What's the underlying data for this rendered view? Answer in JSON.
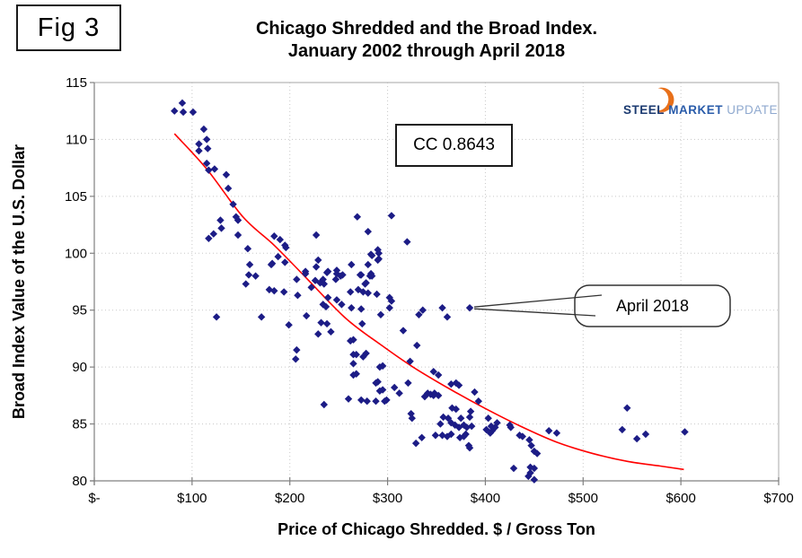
{
  "figure_label": "Fig 3",
  "title": {
    "line1": "Chicago Shredded and the Broad Index.",
    "line2": "January 2002 through April 2018"
  },
  "annotations": {
    "correlation": "CC 0.8643",
    "callout_label": "April 2018"
  },
  "logo": {
    "steel": "STEEL",
    "market": "MARKET",
    "update": "UPDATE"
  },
  "axes": {
    "x_title": "Price of Chicago Shredded. $ / Gross Ton",
    "y_title": "Broad Index Value of the U.S. Dollar"
  },
  "colors": {
    "marker": "#1c1c86",
    "trend": "#ff0000",
    "grid": "#c8c8c8",
    "axis": "#808080",
    "plot_border": "#b7b7b7",
    "callout_stroke": "#333333",
    "logo_orange": "#e8701a",
    "logo_navy": "#1b3a70",
    "logo_blue": "#2a5caa",
    "logo_light": "#8fa9cf"
  },
  "chart_data": {
    "type": "scatter",
    "title": "Chicago Shredded and the Broad Index. January 2002 through April 2018",
    "xlabel": "Price of Chicago Shredded. $ / Gross Ton",
    "ylabel": "Broad Index Value of the U.S. Dollar",
    "xlim": [
      0,
      700
    ],
    "ylim": [
      80,
      115
    ],
    "grid": "dotted",
    "legend_position": "none",
    "correlation_coefficient": 0.8643,
    "x_ticks": [
      {
        "v": 0,
        "label": "$-"
      },
      {
        "v": 100,
        "label": "$100"
      },
      {
        "v": 200,
        "label": "$200"
      },
      {
        "v": 300,
        "label": "$300"
      },
      {
        "v": 400,
        "label": "$400"
      },
      {
        "v": 500,
        "label": "$500"
      },
      {
        "v": 600,
        "label": "$600"
      },
      {
        "v": 700,
        "label": "$700"
      }
    ],
    "y_ticks": [
      {
        "v": 115,
        "label": "115"
      },
      {
        "v": 110,
        "label": "110"
      },
      {
        "v": 105,
        "label": "105"
      },
      {
        "v": 100,
        "label": "100"
      },
      {
        "v": 95,
        "label": "95"
      },
      {
        "v": 90,
        "label": "90"
      },
      {
        "v": 85,
        "label": "85"
      },
      {
        "v": 80,
        "label": "80"
      }
    ],
    "callout": {
      "label": "April 2018",
      "point": [
        384,
        95.2
      ]
    },
    "series": [
      {
        "name": "Monthly observations Jan 2002 - Apr 2018",
        "type": "scatter",
        "marker": "diamond",
        "color": "#1c1c86",
        "points": [
          [
            82,
            112.5
          ],
          [
            90,
            113.2
          ],
          [
            91,
            112.4
          ],
          [
            101,
            112.4
          ],
          [
            112,
            110.9
          ],
          [
            115,
            110.0
          ],
          [
            107,
            109.6
          ],
          [
            116,
            109.2
          ],
          [
            107,
            109.0
          ],
          [
            115,
            107.9
          ],
          [
            117,
            107.3
          ],
          [
            123,
            107.4
          ],
          [
            135,
            106.9
          ],
          [
            137,
            105.7
          ],
          [
            142,
            104.3
          ],
          [
            145,
            103.2
          ],
          [
            147,
            102.9
          ],
          [
            129,
            102.9
          ],
          [
            130,
            102.2
          ],
          [
            122,
            101.7
          ],
          [
            117,
            101.3
          ],
          [
            147,
            101.6
          ],
          [
            125,
            94.4
          ],
          [
            269,
            103.2
          ],
          [
            304,
            103.3
          ],
          [
            227,
            101.6
          ],
          [
            280,
            101.9
          ],
          [
            184,
            101.5
          ],
          [
            190,
            101.2
          ],
          [
            195,
            100.7
          ],
          [
            320,
            101.0
          ],
          [
            196,
            100.5
          ],
          [
            157,
            100.4
          ],
          [
            290,
            100.3
          ],
          [
            291,
            100.0
          ],
          [
            283,
            99.9
          ],
          [
            284,
            99.8
          ],
          [
            188,
            99.7
          ],
          [
            291,
            99.5
          ],
          [
            290,
            99.4
          ],
          [
            229,
            99.4
          ],
          [
            182,
            99.1
          ],
          [
            195,
            99.2
          ],
          [
            263,
            99.0
          ],
          [
            280,
            99.0
          ],
          [
            159,
            99.0
          ],
          [
            181,
            99.0
          ],
          [
            227,
            98.8
          ],
          [
            216,
            98.4
          ],
          [
            239,
            98.4
          ],
          [
            248,
            98.5
          ],
          [
            272,
            98.1
          ],
          [
            282,
            98.0
          ],
          [
            226,
            97.6
          ],
          [
            234,
            97.7
          ],
          [
            247,
            97.7
          ],
          [
            254,
            98.1
          ],
          [
            207,
            97.7
          ],
          [
            277,
            97.3
          ],
          [
            158,
            98.1
          ],
          [
            165,
            98.0
          ],
          [
            155,
            97.3
          ],
          [
            216,
            98.2
          ],
          [
            238,
            98.3
          ],
          [
            248,
            98.2
          ],
          [
            252,
            98.0
          ],
          [
            273,
            98.1
          ],
          [
            283,
            98.2
          ],
          [
            284,
            98.0
          ],
          [
            278,
            97.4
          ],
          [
            222,
            97.0
          ],
          [
            231,
            97.4
          ],
          [
            235,
            97.3
          ],
          [
            179,
            96.8
          ],
          [
            184,
            96.7
          ],
          [
            194,
            96.6
          ],
          [
            208,
            96.3
          ],
          [
            239,
            96.1
          ],
          [
            248,
            95.9
          ],
          [
            234,
            95.5
          ],
          [
            237,
            95.3
          ],
          [
            253,
            95.5
          ],
          [
            270,
            96.8
          ],
          [
            275,
            96.6
          ],
          [
            280,
            96.5
          ],
          [
            262,
            96.6
          ],
          [
            289,
            96.4
          ],
          [
            302,
            96.1
          ],
          [
            304,
            95.8
          ],
          [
            217,
            94.5
          ],
          [
            171,
            94.4
          ],
          [
            199,
            93.7
          ],
          [
            263,
            95.2
          ],
          [
            273,
            95.1
          ],
          [
            302,
            95.2
          ],
          [
            293,
            94.6
          ],
          [
            332,
            94.6
          ],
          [
            336,
            95.0
          ],
          [
            356,
            95.2
          ],
          [
            384,
            95.2
          ],
          [
            361,
            94.4
          ],
          [
            232,
            93.9
          ],
          [
            238,
            93.8
          ],
          [
            229,
            92.9
          ],
          [
            242,
            93.1
          ],
          [
            274,
            93.8
          ],
          [
            316,
            93.2
          ],
          [
            262,
            92.3
          ],
          [
            265,
            92.4
          ],
          [
            207,
            91.5
          ],
          [
            206,
            90.7
          ],
          [
            268,
            91.1
          ],
          [
            278,
            91.2
          ],
          [
            265,
            90.3
          ],
          [
            295,
            90.1
          ],
          [
            330,
            91.9
          ],
          [
            265,
            91.1
          ],
          [
            275,
            90.9
          ],
          [
            292,
            90.0
          ],
          [
            323,
            90.5
          ],
          [
            268,
            89.4
          ],
          [
            290,
            88.7
          ],
          [
            295,
            88.0
          ],
          [
            265,
            89.3
          ],
          [
            288,
            88.6
          ],
          [
            292,
            87.9
          ],
          [
            307,
            88.2
          ],
          [
            312,
            87.7
          ],
          [
            321,
            88.6
          ],
          [
            347,
            89.6
          ],
          [
            352,
            89.3
          ],
          [
            365,
            88.5
          ],
          [
            370,
            88.6
          ],
          [
            373,
            88.4
          ],
          [
            389,
            87.8
          ],
          [
            260,
            87.2
          ],
          [
            279,
            87.0
          ],
          [
            299,
            87.1
          ],
          [
            235,
            86.7
          ],
          [
            341,
            87.7
          ],
          [
            347,
            87.5
          ],
          [
            352,
            87.5
          ],
          [
            393,
            87.0
          ],
          [
            273,
            87.1
          ],
          [
            288,
            87.0
          ],
          [
            297,
            87.0
          ],
          [
            366,
            86.4
          ],
          [
            370,
            86.3
          ],
          [
            385,
            86.1
          ],
          [
            338,
            87.4
          ],
          [
            344,
            87.6
          ],
          [
            348,
            87.7
          ],
          [
            545,
            86.4
          ],
          [
            324,
            85.9
          ],
          [
            325,
            85.5
          ],
          [
            384,
            85.6
          ],
          [
            386,
            84.8
          ],
          [
            357,
            85.6
          ],
          [
            362,
            85.5
          ],
          [
            375,
            85.5
          ],
          [
            378,
            84.9
          ],
          [
            381,
            84.7
          ],
          [
            354,
            85.0
          ],
          [
            365,
            85.1
          ],
          [
            369,
            84.9
          ],
          [
            373,
            84.7
          ],
          [
            365,
            84.1
          ],
          [
            356,
            84.0
          ],
          [
            349,
            84.0
          ],
          [
            361,
            83.9
          ],
          [
            374,
            83.8
          ],
          [
            378,
            83.9
          ],
          [
            380,
            84.1
          ],
          [
            403,
            85.5
          ],
          [
            406,
            84.8
          ],
          [
            410,
            84.7
          ],
          [
            407,
            84.4
          ],
          [
            412,
            85.1
          ],
          [
            401,
            84.5
          ],
          [
            405,
            84.2
          ],
          [
            425,
            84.9
          ],
          [
            426,
            84.7
          ],
          [
            435,
            84.0
          ],
          [
            438,
            83.9
          ],
          [
            465,
            84.4
          ],
          [
            473,
            84.2
          ],
          [
            540,
            84.5
          ],
          [
            555,
            83.7
          ],
          [
            564,
            84.1
          ],
          [
            604,
            84.3
          ],
          [
            335,
            83.8
          ],
          [
            329,
            83.3
          ],
          [
            383,
            83.1
          ],
          [
            384,
            82.9
          ],
          [
            445,
            83.6
          ],
          [
            447,
            83.1
          ],
          [
            450,
            82.6
          ],
          [
            453,
            82.4
          ],
          [
            429,
            81.1
          ],
          [
            446,
            81.2
          ],
          [
            450,
            81.1
          ],
          [
            444,
            80.4
          ],
          [
            446,
            80.7
          ],
          [
            450,
            80.1
          ]
        ]
      },
      {
        "name": "Trend line",
        "type": "line",
        "color": "#ff0000",
        "points": [
          [
            82,
            110.5
          ],
          [
            115,
            107.4
          ],
          [
            152,
            103.2
          ],
          [
            184,
            100.7
          ],
          [
            216,
            97.9
          ],
          [
            257,
            94.3
          ],
          [
            294,
            91.9
          ],
          [
            326,
            90.0
          ],
          [
            363,
            88.1
          ],
          [
            399,
            86.4
          ],
          [
            436,
            84.8
          ],
          [
            473,
            83.4
          ],
          [
            510,
            82.4
          ],
          [
            546,
            81.7
          ],
          [
            579,
            81.3
          ],
          [
            603,
            81.0
          ]
        ]
      }
    ]
  }
}
